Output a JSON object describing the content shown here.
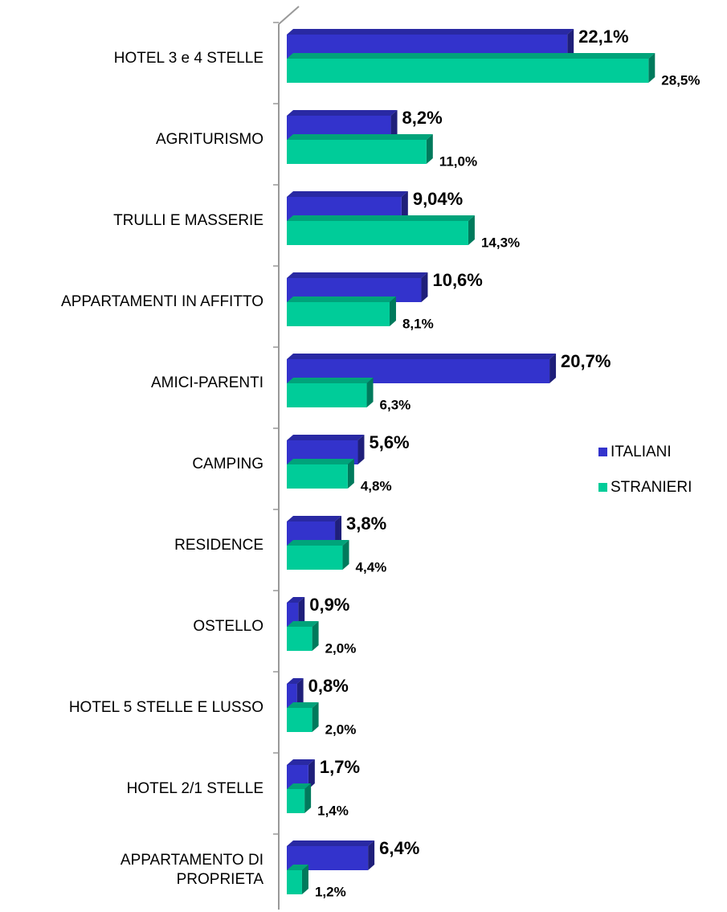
{
  "chart_data": {
    "type": "bar",
    "orientation": "horizontal",
    "categories": [
      "HOTEL 3 e 4 STELLE",
      "AGRITURISMO",
      "TRULLI E MASSERIE",
      "APPARTAMENTI IN AFFITTO",
      "AMICI-PARENTI",
      "CAMPING",
      "RESIDENCE",
      "OSTELLO",
      "HOTEL 5 STELLE E LUSSO",
      "HOTEL 2/1 STELLE",
      "APPARTAMENTO DI\nPROPRIETA"
    ],
    "series": [
      {
        "name": "ITALIANI",
        "color": "#3333cc",
        "values": [
          22.1,
          8.2,
          9.04,
          10.6,
          20.7,
          5.6,
          3.8,
          0.9,
          0.8,
          1.7,
          6.4
        ],
        "value_labels": [
          "22,1%",
          "8,2%",
          "9,04%",
          "10,6%",
          "20,7%",
          "5,6%",
          "3,8%",
          "0,9%",
          "0,8%",
          "1,7%",
          "6,4%"
        ]
      },
      {
        "name": "STRANIERI",
        "color": "#00cc99",
        "values": [
          28.5,
          11.0,
          14.3,
          8.1,
          6.3,
          4.8,
          4.4,
          2.0,
          2.0,
          1.4,
          1.2
        ],
        "value_labels": [
          "28,5%",
          "11,0%",
          "14,3%",
          "8,1%",
          "6,3%",
          "4,8%",
          "4,4%",
          "2,0%",
          "2,0%",
          "1,4%",
          "1,2%"
        ]
      }
    ],
    "xlim": [
      0,
      30
    ],
    "legend": "right"
  }
}
